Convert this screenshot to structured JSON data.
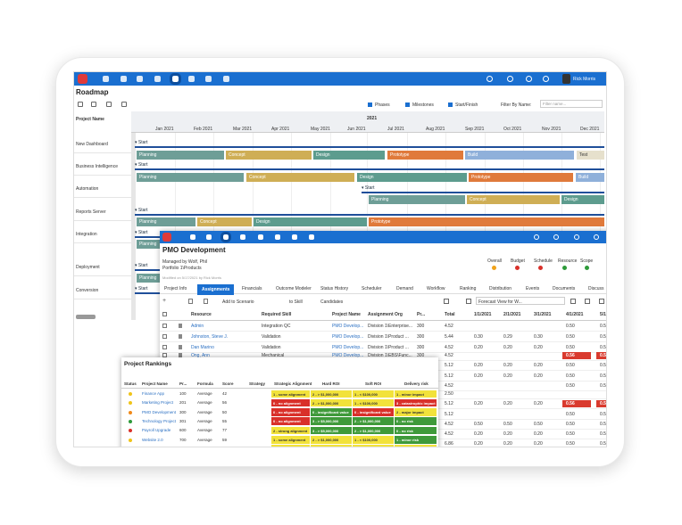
{
  "roadmap": {
    "user": "Rick Morris",
    "title": "Roadmap",
    "options": [
      "Phases",
      "Milestones",
      "Start/Finish"
    ],
    "filter_label": "Filter By Name:",
    "filter_placeholder": "Filter name...",
    "column_header": "Project Name",
    "year": "2021",
    "months": [
      "Jan 2021",
      "Feb 2021",
      "Mar 2021",
      "Apr 2021",
      "May 2021",
      "Jun 2021",
      "Jul 2021",
      "Aug 2021",
      "Sep 2021",
      "Oct 2021",
      "Nov 2021",
      "Dec 2021"
    ],
    "projects": [
      "New Dashboard",
      "Business Intelligence",
      "Automation",
      "Reports Server",
      "Integration",
      "Deployment",
      "Conversion"
    ],
    "start_label": "Start",
    "lanes": [
      [
        "Planning",
        "Concept",
        "Design",
        "Prototype",
        "Build",
        "Test"
      ],
      [
        "Planning",
        "Concept",
        "Design",
        "Prototype",
        "Build"
      ],
      [
        "Planning",
        "Concept",
        "Design"
      ],
      [
        "Planning",
        "Concept",
        "Design",
        "Prototype"
      ],
      [
        "Planning"
      ],
      [
        "Planning"
      ]
    ]
  },
  "pmo": {
    "title": "PMO Development",
    "managed_by": "Managed by Wolf, Phil",
    "portfolio": "Portfolio 1\\Products",
    "modified": "Modified on 5/17/2021 by Rick Morris",
    "indicators": [
      "Overall",
      "Budget",
      "Schedule",
      "Resource",
      "Scope"
    ],
    "tabs": [
      "Project Info",
      "Assignments",
      "Financials",
      "Outcome Modeler",
      "Status History",
      "Scheduler",
      "Demand",
      "Workflow",
      "Ranking",
      "Distribution",
      "Events",
      "Documents",
      "Discuss"
    ],
    "toolbar": [
      "Add to Scenario",
      "to Skill",
      "Candidates",
      "Forecast View for W..."
    ],
    "columns": [
      "Resource",
      "Required Skill",
      "Project Name",
      "Assignment Org",
      "Pr...",
      "Total",
      "1/1/2021",
      "2/1/2021",
      "3/1/2021",
      "4/1/2021",
      "5/1"
    ],
    "rows": [
      {
        "resource": "Admin",
        "skill": "Integration QC",
        "project": "PMO Develop...",
        "org": "Division 1\\Enterprise...",
        "priority": "300",
        "total": "4.52",
        "months": [
          "0.50",
          "0.50"
        ]
      },
      {
        "resource": "Johnston, Steve J.",
        "skill": "Validation",
        "project": "PMO Develop...",
        "org": "Division 1\\Product ...",
        "priority": "300",
        "total": "5.44",
        "months": [
          "0.30",
          "0.29",
          "0.30",
          "0.50",
          "0.50"
        ]
      },
      {
        "resource": "Dan Marino",
        "skill": "Validation",
        "project": "PMO Develop...",
        "org": "Division 1\\Product ...",
        "priority": "300",
        "total": "4.52",
        "months": [
          "0.20",
          "0.20",
          "0.20",
          "0.50",
          "0.50"
        ]
      },
      {
        "resource": "Ong, Ann",
        "skill": "Mechanical",
        "project": "PMO Develop...",
        "org": "Division 1\\EBS\\Func...",
        "priority": "300",
        "total": "4.52",
        "months": [
          "0.56",
          "0.5"
        ]
      }
    ],
    "more_rows": [
      [
        "5.12",
        "0.20",
        "0.20",
        "0.20",
        "0.50",
        "0.50"
      ],
      [
        "5.12",
        "0.20",
        "0.20",
        "0.20",
        "0.50",
        "0.50"
      ],
      [
        "4.52",
        "0.50",
        "0.50"
      ],
      [
        "2.50"
      ],
      [
        "5.12",
        "0.20",
        "0.20",
        "0.20",
        "0.56",
        "0.5"
      ],
      [
        "5.12",
        "0.50",
        "0.50"
      ],
      [
        "4.52",
        "0.50",
        "0.50",
        "0.50",
        "0.50",
        "0.50"
      ],
      [
        "4.52",
        "0.20",
        "0.20",
        "0.20",
        "0.50",
        "0.50"
      ],
      [
        "6.86",
        "0.20",
        "0.20",
        "0.20",
        "0.50",
        "0.50"
      ]
    ]
  },
  "rankings": {
    "title": "Project Rankings",
    "columns": [
      "Status",
      "Project Name",
      "Pr...",
      "Formula",
      "Score",
      "Strategy",
      "Strategic Alignment",
      "Hard ROI",
      "Soft ROI",
      "Delivery risk"
    ],
    "rows": [
      [
        "Finance App",
        "100",
        "Average",
        "42",
        "1 - some alignment",
        "2 - > $1,000,000",
        "1 - < $100,000",
        "1 - minor impact"
      ],
      [
        "Marketing Project",
        "201",
        "Average",
        "56",
        "0 - no alignment",
        "2 - > $1,000,000",
        "1 - < $100,000",
        "3 - catastrophic impact"
      ],
      [
        "PMO Development",
        "300",
        "Average",
        "50",
        "0 - no alignment",
        "0 - insignificant value",
        "0 - insignificant value",
        "2 - major impact"
      ],
      [
        "Technology Project",
        "301",
        "Average",
        "55",
        "0 - no alignment",
        "3 - > $5,000,000",
        "2 - > $1,000,000",
        "0 - no risk"
      ],
      [
        "Payroll Upgrade",
        "600",
        "Average",
        "77",
        "2 - strong alignment",
        "3 - > $5,000,000",
        "2 - > $1,000,000",
        "0 - no risk"
      ],
      [
        "Website 2.0",
        "700",
        "Average",
        "59",
        "1 - some alignment",
        "2 - > $1,000,000",
        "1 - < $100,000",
        "1 - minor risk"
      ],
      [
        "PDWare Impleme...",
        "800",
        "Average",
        "60",
        "1 - some alignment",
        "2 - > $1,000,000",
        "1 - < $100,000",
        "2 - major impact"
      ]
    ]
  }
}
